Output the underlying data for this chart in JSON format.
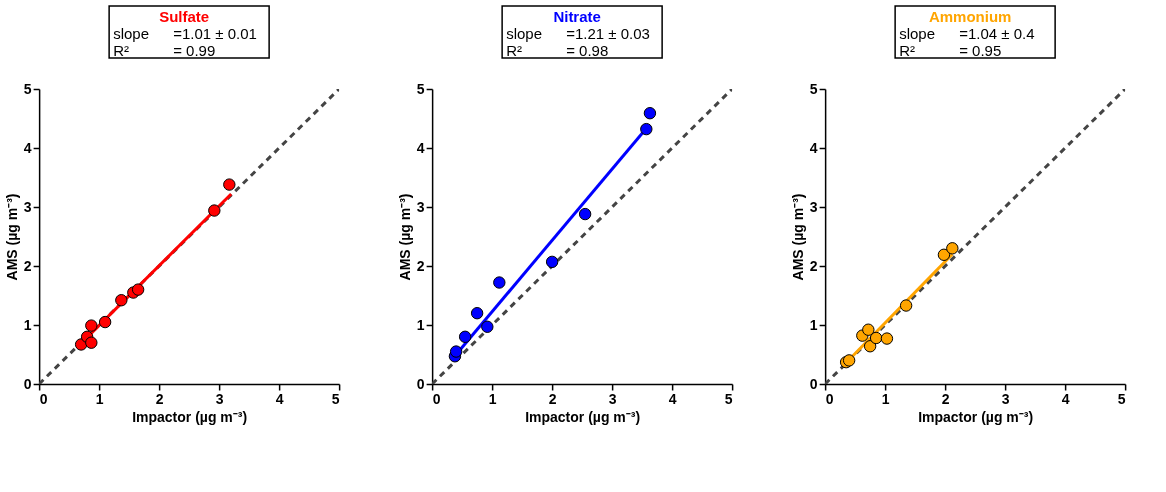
{
  "chart_data": [
    {
      "type": "scatter",
      "title": "Sulfate",
      "annotations": [
        "slope =1.01 ± 0.01",
        "R² = 0.99"
      ],
      "xlabel": "Impactor (µg m⁻³)",
      "ylabel": "AMS (µg m⁻³)",
      "xlim": [
        0,
        5
      ],
      "ylim": [
        0,
        5
      ],
      "xticks": [
        0,
        1,
        2,
        3,
        4,
        5
      ],
      "yticks": [
        0,
        1,
        2,
        3,
        4,
        5
      ],
      "grid": false,
      "marker": "circle",
      "series": [
        {
          "type": "line",
          "color": "#444444",
          "line_style": "dashed",
          "marker": "none",
          "x": [
            0,
            5
          ],
          "values": [
            0,
            5
          ]
        },
        {
          "type": "line",
          "color": "#ff0000",
          "line_style": "solid",
          "marker": "none",
          "x": [
            0.75,
            3.2
          ],
          "values": [
            0.74,
            3.22
          ]
        },
        {
          "color": "#ff0000",
          "x": [
            0.7,
            0.8,
            0.87,
            0.87,
            1.1,
            1.37,
            1.57,
            1.65,
            2.92,
            3.17
          ],
          "values": [
            0.67,
            0.8,
            0.7,
            0.99,
            1.05,
            1.42,
            1.55,
            1.6,
            2.94,
            3.38
          ]
        }
      ]
    },
    {
      "type": "scatter",
      "title": "Nitrate",
      "annotations": [
        "slope =1.21 ± 0.03",
        "R² = 0.98"
      ],
      "xlabel": "Impactor (µg m⁻³)",
      "ylabel": "AMS (µg m⁻³)",
      "xlim": [
        0,
        5
      ],
      "ylim": [
        0,
        5
      ],
      "xticks": [
        0,
        1,
        2,
        3,
        4,
        5
      ],
      "yticks": [
        0,
        1,
        2,
        3,
        4,
        5
      ],
      "grid": false,
      "marker": "circle",
      "series": [
        {
          "type": "line",
          "color": "#444444",
          "line_style": "dashed",
          "marker": "none",
          "x": [
            0,
            5
          ],
          "values": [
            0,
            5
          ]
        },
        {
          "type": "line",
          "color": "#0000ff",
          "line_style": "solid",
          "marker": "none",
          "x": [
            0.4,
            3.6
          ],
          "values": [
            0.5,
            4.37
          ]
        },
        {
          "color": "#0000ff",
          "x": [
            0.38,
            0.4,
            0.55,
            0.75,
            0.92,
            1.12,
            2.0,
            2.55,
            3.57,
            3.63
          ],
          "values": [
            0.47,
            0.55,
            0.8,
            1.2,
            0.97,
            1.72,
            2.07,
            2.88,
            4.32,
            4.59
          ]
        }
      ]
    },
    {
      "type": "scatter",
      "title": "Ammonium",
      "annotations": [
        "slope =1.04 ± 0.4",
        "R² = 0.95"
      ],
      "xlabel": "Impactor (µg m⁻³)",
      "ylabel": "AMS (µg m⁻³)",
      "xlim": [
        0,
        5
      ],
      "ylim": [
        0,
        5
      ],
      "xticks": [
        0,
        1,
        2,
        3,
        4,
        5
      ],
      "yticks": [
        0,
        1,
        2,
        3,
        4,
        5
      ],
      "grid": false,
      "marker": "circle",
      "series": [
        {
          "type": "line",
          "color": "#444444",
          "line_style": "dashed",
          "marker": "none",
          "x": [
            0,
            5
          ],
          "values": [
            0,
            5
          ]
        },
        {
          "type": "line",
          "color": "#ffa500",
          "line_style": "solid",
          "marker": "none",
          "x": [
            0.35,
            2.12
          ],
          "values": [
            0.36,
            2.2
          ]
        },
        {
          "color": "#ffa500",
          "x": [
            0.35,
            0.4,
            0.62,
            0.72,
            0.75,
            0.85,
            1.03,
            1.35,
            1.98,
            2.12
          ],
          "values": [
            0.37,
            0.4,
            0.82,
            0.92,
            0.64,
            0.78,
            0.77,
            1.33,
            2.19,
            2.3
          ]
        }
      ]
    }
  ]
}
